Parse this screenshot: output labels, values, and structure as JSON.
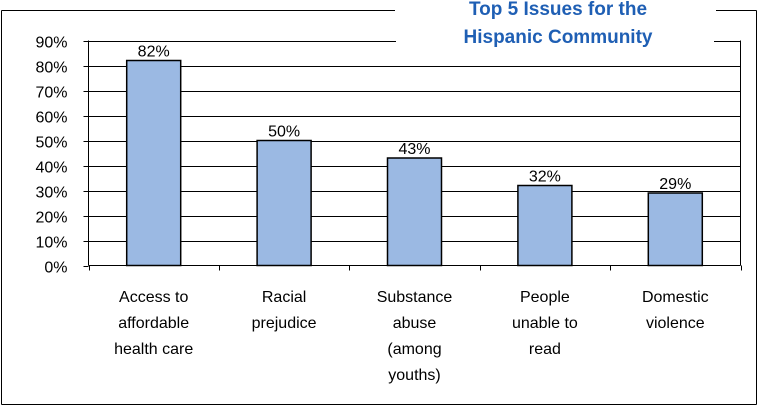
{
  "chart_data": {
    "type": "bar",
    "title_lines": [
      "Top 5 Issues for the",
      "Hispanic Community"
    ],
    "categories": [
      [
        "Access to",
        "affordable",
        "health care"
      ],
      [
        "Racial",
        "prejudice"
      ],
      [
        "Substance",
        "abuse",
        "(among",
        "youths)"
      ],
      [
        "People",
        "unable to",
        "read"
      ],
      [
        "Domestic",
        "violence"
      ]
    ],
    "values": [
      82,
      50,
      43,
      32,
      29
    ],
    "data_labels": [
      "82%",
      "50%",
      "43%",
      "32%",
      "29%"
    ],
    "y_ticks": [
      "0%",
      "10%",
      "20%",
      "30%",
      "40%",
      "50%",
      "60%",
      "70%",
      "80%",
      "90%"
    ],
    "ylim": [
      0,
      90
    ],
    "grid": true,
    "legend": "none",
    "colors": {
      "bar_fill": "#9BB9E3",
      "bar_stroke": "#000000",
      "title": "#1F5FB4",
      "grid": "#000000"
    }
  }
}
